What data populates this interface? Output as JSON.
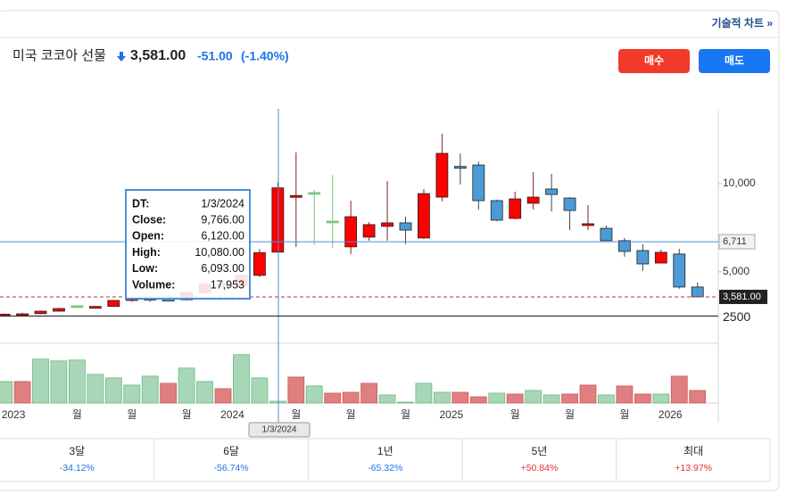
{
  "top_link": "기술적 차트 »",
  "header": {
    "name": "미국 코코아 선물",
    "price": "3,581.00",
    "change": "-51.00",
    "change_pct": "(-1.40%)"
  },
  "buttons": [
    "매수",
    "매도"
  ],
  "performance": [
    {
      "period": "3달",
      "label": "-34.12%"
    },
    {
      "period": "6달",
      "label": "-56.74%"
    },
    {
      "period": "1년",
      "label": "-65.32%"
    },
    {
      "period": "5년",
      "label": "+50.84%"
    },
    {
      "period": "최대",
      "label": "+13.97%"
    }
  ],
  "chart_data": {
    "type": "candlestick",
    "categories": [
      null,
      "2023",
      null,
      null,
      "월",
      null,
      null,
      "월",
      null,
      null,
      "월",
      null,
      null,
      "2024",
      null,
      null,
      "월",
      null,
      null,
      "월",
      null,
      null,
      "월",
      null,
      null,
      "2025",
      null,
      null,
      "월",
      null,
      null,
      "월",
      null,
      null,
      "월",
      null,
      null,
      "2026",
      null
    ],
    "open": [
      2560,
      2600,
      2630,
      2770,
      3030,
      3020,
      3040,
      3380,
      3500,
      3450,
      3420,
      3820,
      4300,
      4220,
      4800,
      6120,
      9300,
      9450,
      7830,
      6420,
      6970,
      7580,
      7780,
      6920,
      9240,
      10980,
      11060,
      9040,
      8030,
      8890,
      9700,
      9190,
      7680,
      7470,
      6770,
      6210,
      5500,
      6010,
      4140
    ],
    "high": [
      2650,
      2680,
      2800,
      2960,
      3080,
      3060,
      3400,
      3600,
      3600,
      3650,
      3900,
      4400,
      4500,
      4950,
      6300,
      10080,
      11770,
      9650,
      10500,
      9040,
      7830,
      10150,
      8130,
      9700,
      12830,
      11720,
      11250,
      9100,
      9550,
      10660,
      10560,
      9240,
      8790,
      7630,
      6920,
      6570,
      6260,
      6310,
      4390
    ],
    "low": [
      2520,
      2560,
      2600,
      2750,
      2990,
      2990,
      3020,
      3300,
      3300,
      3350,
      3380,
      3750,
      4100,
      4150,
      4700,
      6093,
      6420,
      6520,
      6360,
      6010,
      6770,
      6770,
      6570,
      6860,
      9000,
      9950,
      8530,
      7880,
      7980,
      8530,
      8430,
      7370,
      7370,
      6770,
      5860,
      5050,
      5500,
      4040,
      3581
    ],
    "close": [
      2600,
      2620,
      2770,
      2920,
      3030,
      3040,
      3380,
      3500,
      3450,
      3420,
      3820,
      4300,
      4220,
      4800,
      6090,
      9766,
      9330,
      9450,
      7830,
      8130,
      7680,
      7780,
      7370,
      9440,
      11720,
      10960,
      9040,
      7930,
      9140,
      9240,
      9390,
      8480,
      7730,
      6770,
      6160,
      5450,
      6110,
      4140,
      3581
    ],
    "volume": [
      216000,
      216000,
      441000,
      423000,
      432000,
      288000,
      252000,
      180000,
      270000,
      198000,
      351000,
      216000,
      144000,
      486000,
      252000,
      17953,
      261000,
      171000,
      99000,
      108000,
      198000,
      81000,
      9000,
      198000,
      108000,
      108000,
      63000,
      99000,
      90000,
      126000,
      81000,
      90000,
      180000,
      81000,
      171000,
      90000,
      90000,
      270000,
      126000
    ],
    "volume_colors": [
      "#a7d7b6",
      "#e07f7f",
      "#a7d7b6",
      "#a7d7b6",
      "#a7d7b6",
      "#a7d7b6",
      "#a7d7b6",
      "#a7d7b6",
      "#a7d7b6",
      "#e07f7f",
      "#a7d7b6",
      "#a7d7b6",
      "#e07f7f",
      "#a7d7b6",
      "#a7d7b6",
      "#a7d7b6",
      "#e07f7f",
      "#a7d7b6",
      "#e07f7f",
      "#e07f7f",
      "#e07f7f",
      "#a7d7b6",
      "#a7d7b6",
      "#a7d7b6",
      "#a7d7b6",
      "#e07f7f",
      "#e07f7f",
      "#a7d7b6",
      "#e07f7f",
      "#a7d7b6",
      "#a7d7b6",
      "#e07f7f",
      "#e07f7f",
      "#a7d7b6",
      "#e07f7f",
      "#e07f7f",
      "#a7d7b6",
      "#e07f7f",
      "#e07f7f"
    ],
    "up_color": "#ff0000",
    "down_color": "#4b9bd6",
    "flat_color": "#7cc47f",
    "ylim": [
      1000,
      14250
    ],
    "yticks": [
      {
        "value": 10000,
        "label": "10,000"
      },
      {
        "value": 5000,
        "label": "5,000"
      }
    ],
    "reference_line": 2500,
    "volume_lim": [
      0,
      600000
    ],
    "last_price": {
      "value": 3581,
      "label": "3,581.00"
    },
    "crosshair": {
      "y": 6711,
      "y_label": "6,711",
      "x_label": "1/3/2024"
    },
    "tooltip": {
      "rows": [
        [
          "DT:",
          "1/3/2024"
        ],
        [
          "Close:",
          "9,766.00"
        ],
        [
          "Open:",
          "6,120.00"
        ],
        [
          "High:",
          "10,080.00"
        ],
        [
          "Low:",
          "6,093.00"
        ],
        [
          "Volume:",
          "17,953"
        ]
      ]
    }
  }
}
